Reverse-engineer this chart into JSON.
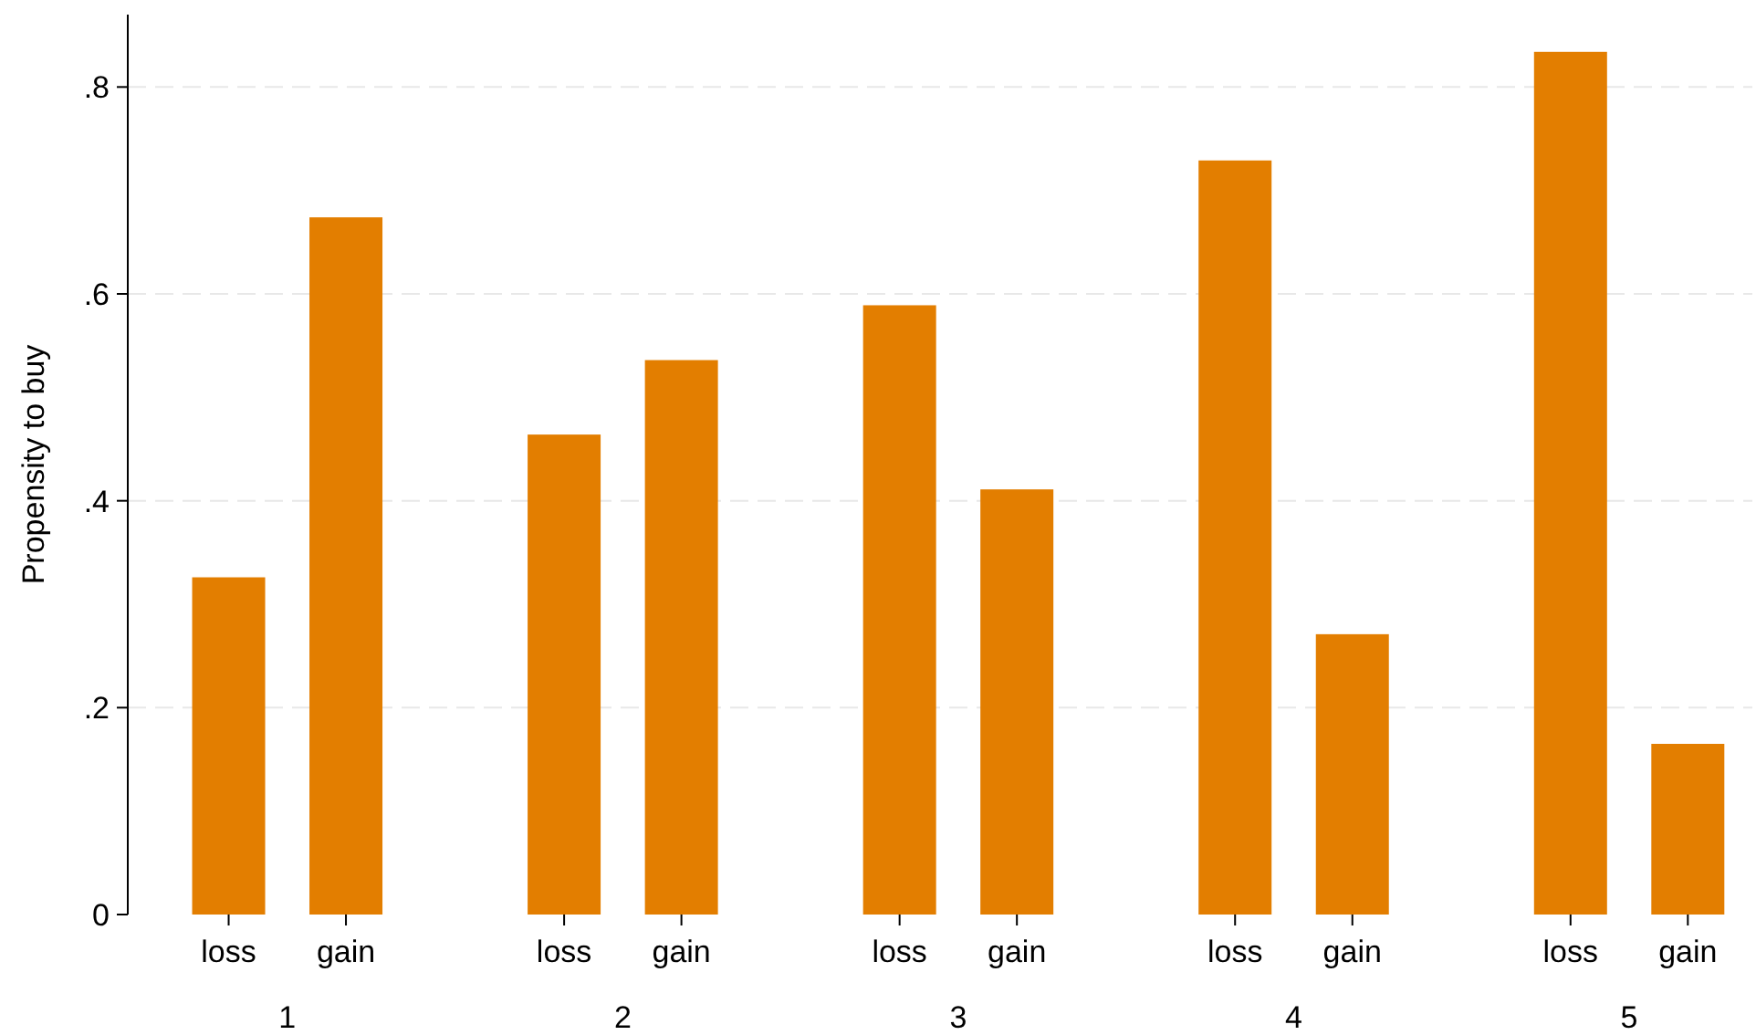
{
  "chart_data": {
    "type": "bar",
    "ylabel": "Propensity to buy",
    "categories": [
      "loss",
      "gain",
      "loss",
      "gain",
      "loss",
      "gain",
      "loss",
      "gain",
      "loss",
      "gain"
    ],
    "values": [
      0.326,
      0.674,
      0.464,
      0.536,
      0.589,
      0.411,
      0.729,
      0.271,
      0.834,
      0.165
    ],
    "color": "#e37e00",
    "ylim": [
      0,
      0.87
    ],
    "yticks": [
      0,
      {
        "value": 0.2,
        "label": ".2"
      },
      {
        "value": 0.4,
        "label": ".4"
      },
      {
        "value": 0.6,
        "label": ".6"
      },
      {
        "value": 0.8,
        "label": ".8"
      }
    ],
    "grid": "y",
    "annotations": [
      "1",
      "2",
      "3",
      "4",
      "5"
    ]
  }
}
